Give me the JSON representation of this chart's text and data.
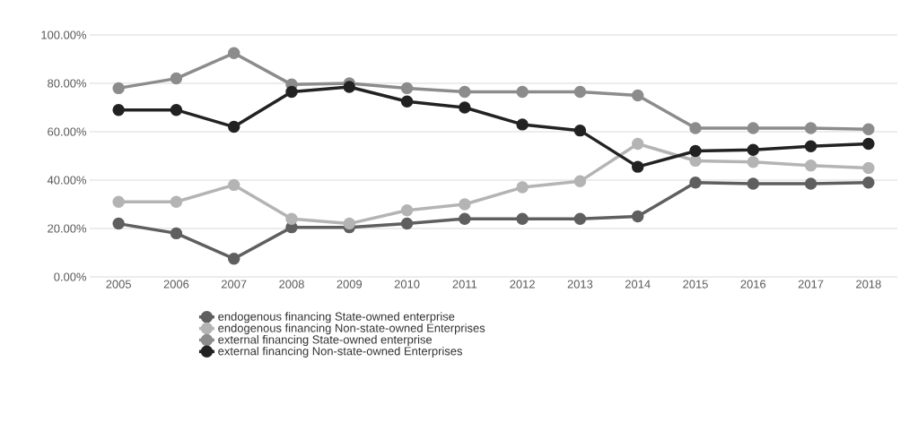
{
  "chart_data": {
    "type": "line",
    "categories": [
      "2005",
      "2006",
      "2007",
      "2008",
      "2009",
      "2010",
      "2011",
      "2012",
      "2013",
      "2014",
      "2015",
      "2016",
      "2017",
      "2018"
    ],
    "series": [
      {
        "name": "endogenous financing State-owned enterprise",
        "color": "#5f5f5f",
        "values": [
          22,
          18,
          7.5,
          20.5,
          20.5,
          22,
          24,
          24,
          24,
          25,
          39,
          38.5,
          38.5,
          39
        ]
      },
      {
        "name": "endogenous financing Non-state-owned Enterprises",
        "color": "#b4b4b4",
        "values": [
          31,
          31,
          38,
          24,
          22,
          27.5,
          30,
          37,
          39.5,
          55,
          48,
          47.5,
          46,
          45
        ]
      },
      {
        "name": "external financing State-owned enterprise",
        "color": "#8c8c8c",
        "values": [
          78,
          82,
          92.5,
          79.5,
          80,
          78,
          76.5,
          76.5,
          76.5,
          75,
          61.5,
          61.5,
          61.5,
          61
        ]
      },
      {
        "name": "external financing Non-state-owned Enterprises",
        "color": "#222222",
        "values": [
          69,
          69,
          62,
          76.5,
          78.5,
          72.5,
          70,
          63,
          60.5,
          45.5,
          52,
          52.5,
          54,
          55
        ]
      }
    ],
    "ylim": [
      0,
      100
    ],
    "yticks": [
      {
        "value": 0,
        "label": "0.00%"
      },
      {
        "value": 20,
        "label": "20.00%"
      },
      {
        "value": 40,
        "label": "40.00%"
      },
      {
        "value": 60,
        "label": "60.00%"
      },
      {
        "value": 80,
        "label": "80.00%"
      },
      {
        "value": 100,
        "label": "100.00%"
      }
    ],
    "grid": "y",
    "legend": "bottom",
    "marker": "circle",
    "line_style": "solid"
  }
}
